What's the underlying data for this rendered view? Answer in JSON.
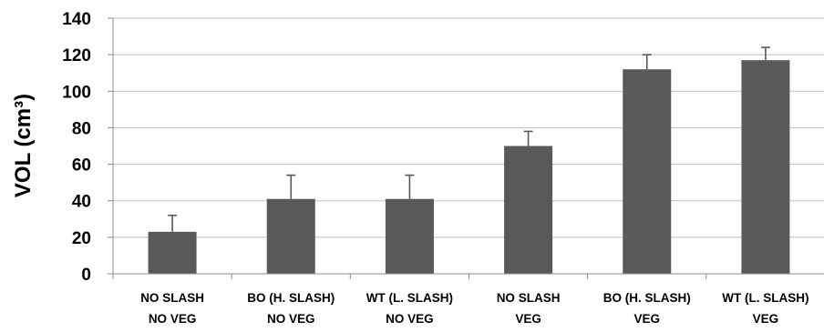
{
  "chart_data": {
    "type": "bar",
    "title": "",
    "xlabel": "",
    "ylabel": "VOL (cm³)",
    "ylim": [
      0,
      140
    ],
    "yticks": [
      0,
      20,
      40,
      60,
      80,
      100,
      120,
      140
    ],
    "grid": true,
    "legend": "none",
    "bar_color": "#595959",
    "categories": [
      [
        "NO SLASH",
        "NO VEG"
      ],
      [
        "BO (H. SLASH)",
        "NO VEG"
      ],
      [
        "WT (L. SLASH)",
        "NO VEG"
      ],
      [
        "NO SLASH",
        "VEG"
      ],
      [
        "BO (H. SLASH)",
        "VEG"
      ],
      [
        "WT (L. SLASH)",
        "VEG"
      ]
    ],
    "values": [
      23,
      41,
      41,
      70,
      112,
      117
    ],
    "error_plus": [
      9,
      13,
      13,
      8,
      8,
      7
    ]
  }
}
